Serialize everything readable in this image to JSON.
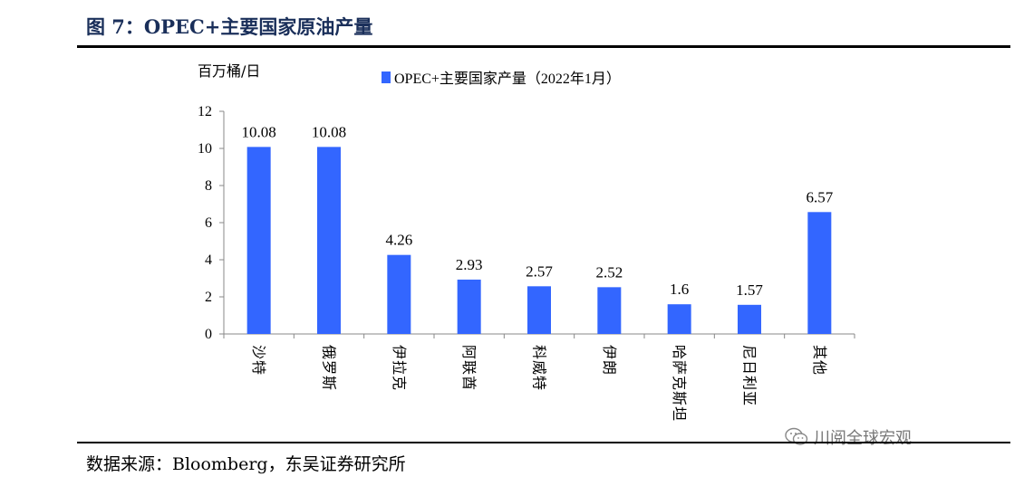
{
  "figure": {
    "title": "图 7：OPEC+主要国家原油产量",
    "source": "数据来源：Bloomberg，东吴证券研究所",
    "watermark": "川阅全球宏观"
  },
  "chart_data": {
    "type": "bar",
    "ylabel": "百万桶/日",
    "xlabel": "",
    "ylim": [
      0,
      12
    ],
    "yticks": [
      0,
      2,
      4,
      6,
      8,
      10,
      12
    ],
    "grid": false,
    "legend_position": "top",
    "categories": [
      "沙特",
      "俄罗斯",
      "伊拉克",
      "阿联酋",
      "科威特",
      "伊朗",
      "哈萨克斯坦",
      "尼日利亚",
      "其他"
    ],
    "series": [
      {
        "name": "OPEC+主要国家产量（2022年1月）",
        "values": [
          10.08,
          10.08,
          4.26,
          2.93,
          2.57,
          2.52,
          1.6,
          1.57,
          6.57
        ],
        "labels": [
          "10.08",
          "10.08",
          "4.26",
          "2.93",
          "2.57",
          "2.52",
          "1.6",
          "1.57",
          "6.57"
        ],
        "color": "#3366ff"
      }
    ]
  }
}
